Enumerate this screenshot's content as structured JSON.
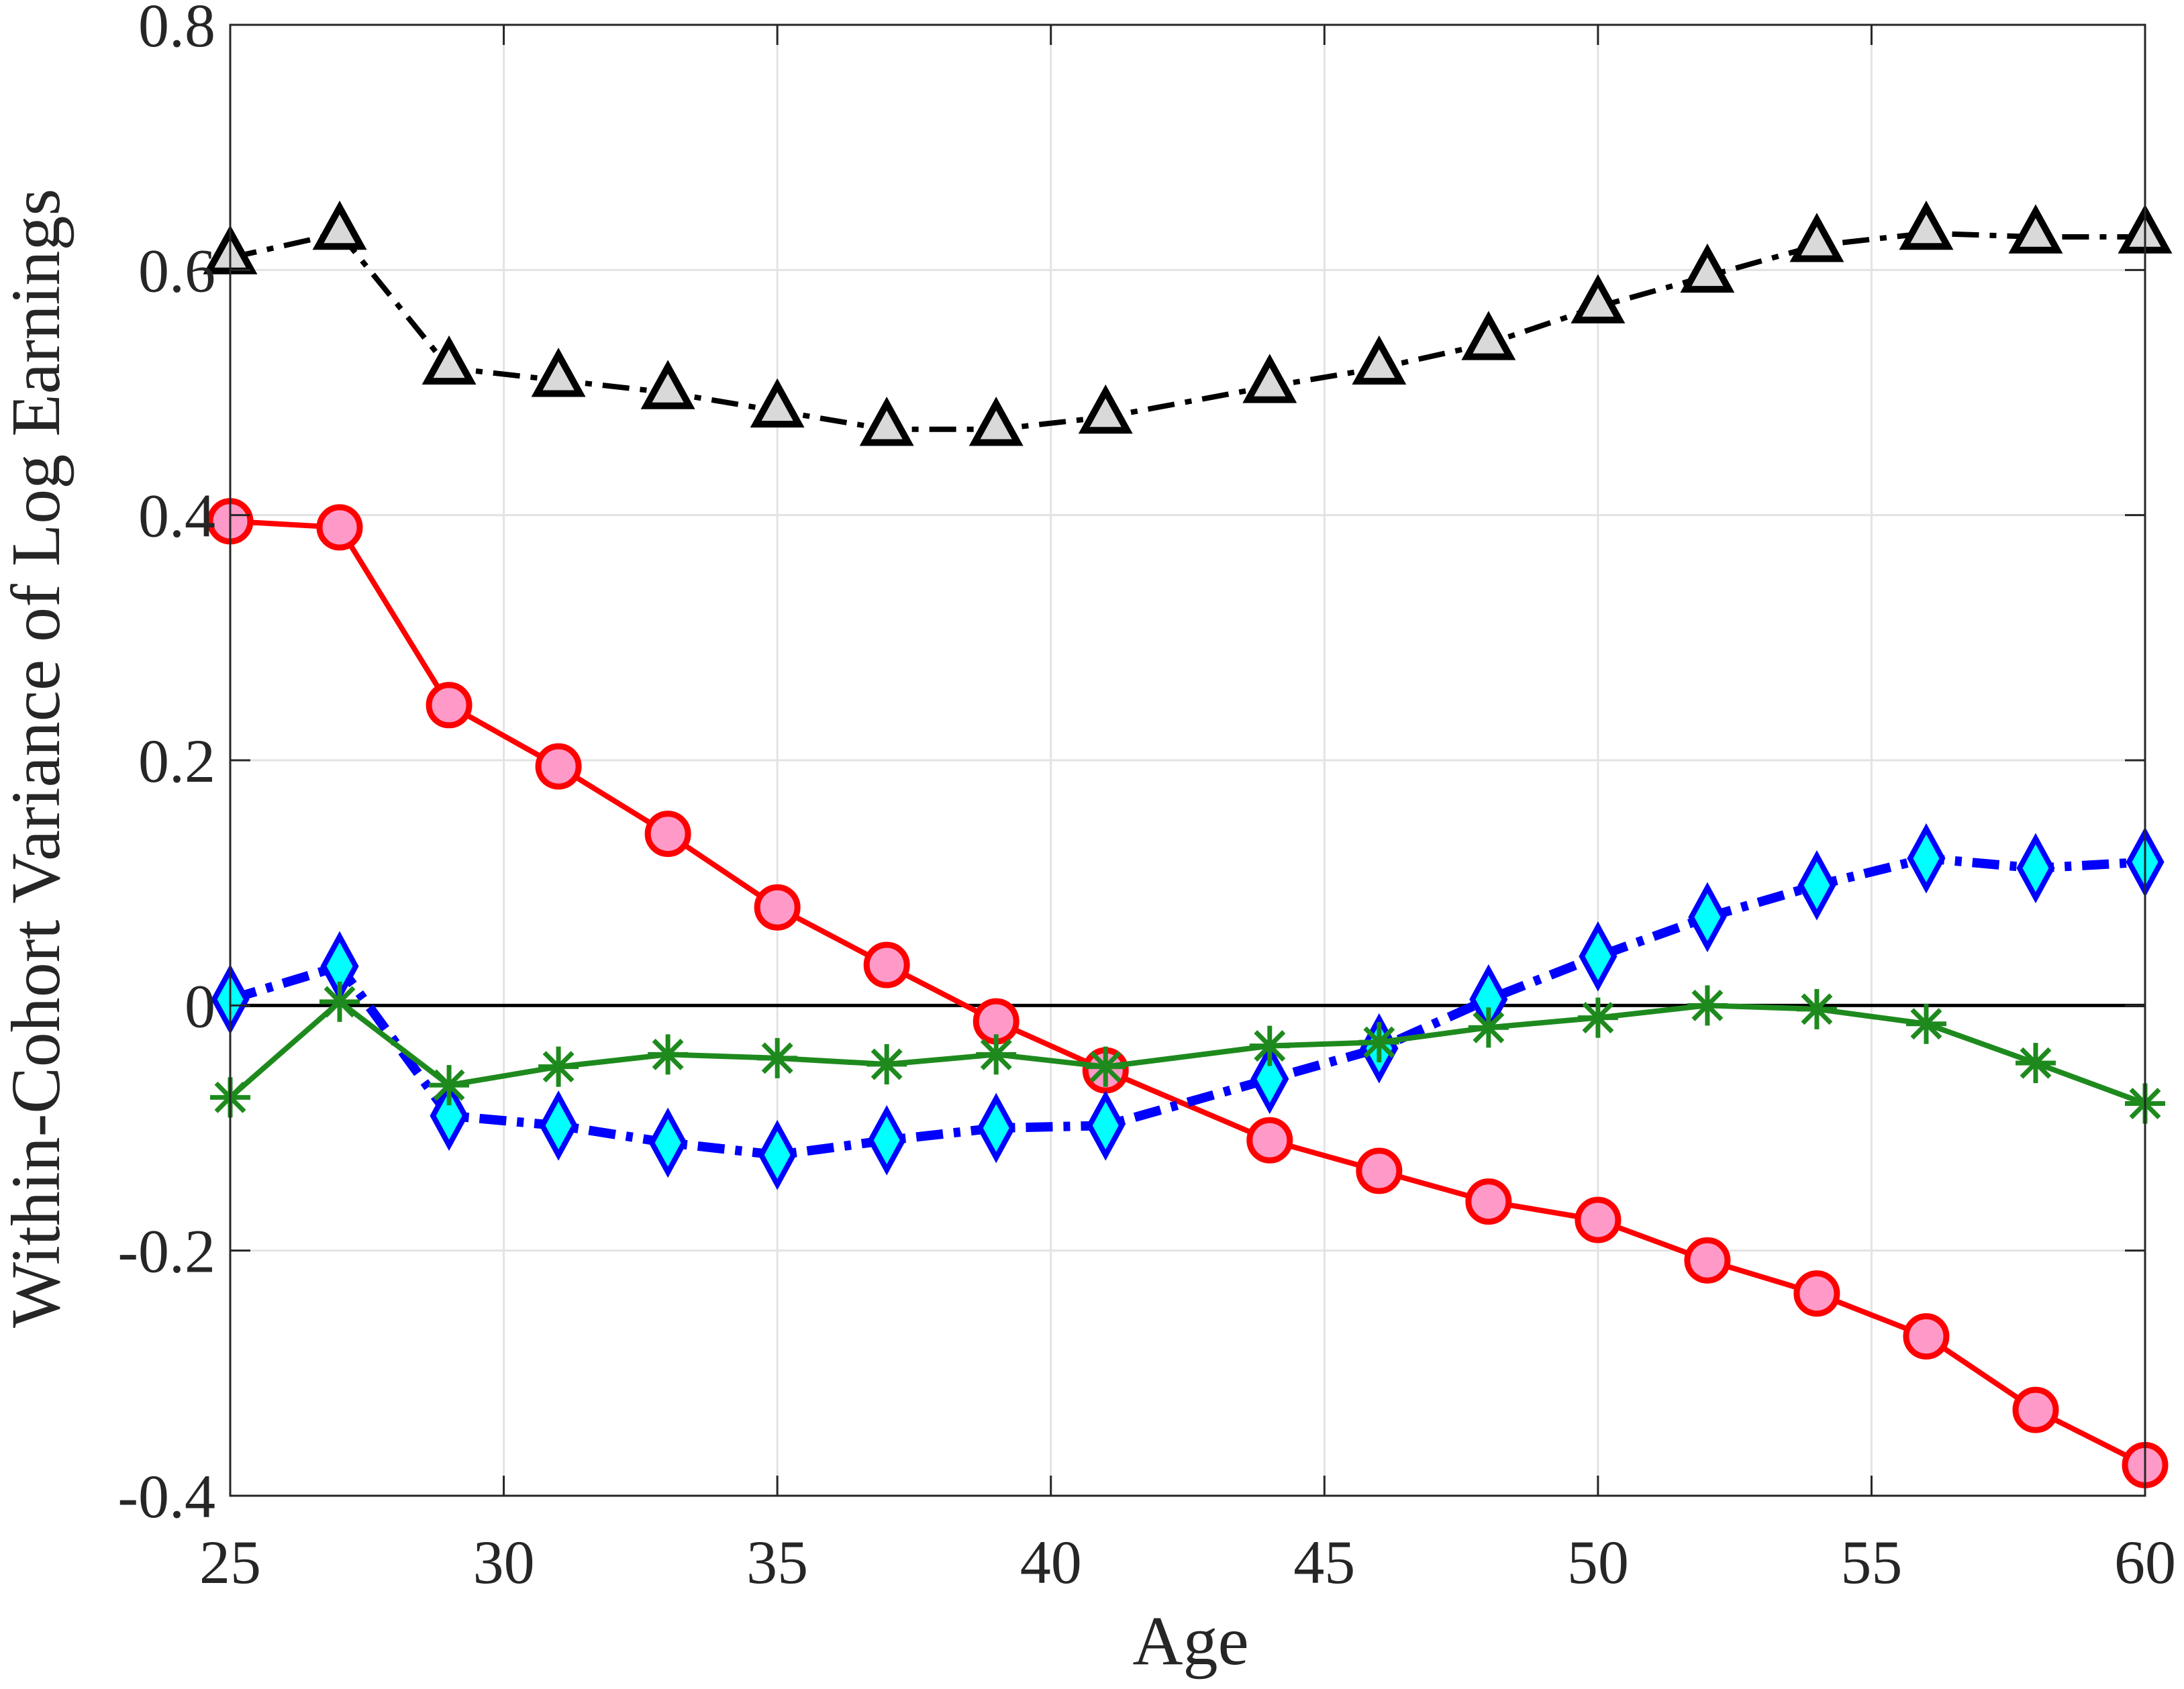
{
  "chart_data": {
    "type": "line",
    "title": "",
    "xlabel": "Age",
    "ylabel": "Within-Cohort Variance of Log Earnings",
    "xlim": [
      25,
      60
    ],
    "ylim": [
      -0.4,
      0.8
    ],
    "xticks": [
      25,
      30,
      35,
      40,
      45,
      50,
      55,
      60
    ],
    "yticks": [
      -0.4,
      -0.2,
      0,
      0.2,
      0.4,
      0.6,
      0.8
    ],
    "ytick_labels": [
      "-0.4",
      "-0.2",
      "0",
      "0.2",
      "0.4",
      "0.6",
      "0.8"
    ],
    "grid": true,
    "legend": null,
    "reference_line": {
      "y": 0,
      "color": "#000000"
    },
    "x": [
      25,
      27,
      29,
      31,
      33,
      35,
      37,
      39,
      41,
      44,
      46,
      48,
      50,
      52,
      54,
      56,
      58,
      60
    ],
    "series": [
      {
        "name": "gray-triangles",
        "marker": "triangle",
        "line_style": "dashdot",
        "line_color": "#000000",
        "marker_fill": "#d9d9d9",
        "marker_edge": "#000000",
        "values": [
          0.61,
          0.63,
          0.52,
          0.51,
          0.5,
          0.485,
          0.47,
          0.47,
          0.48,
          0.505,
          0.52,
          0.54,
          0.57,
          0.595,
          0.62,
          0.63,
          0.627,
          0.627
        ]
      },
      {
        "name": "red-circles",
        "marker": "circle",
        "line_style": "solid",
        "line_color": "#ff0000",
        "marker_fill": "#ff99c8",
        "marker_edge": "#ff0000",
        "values": [
          0.395,
          0.39,
          0.245,
          0.195,
          0.14,
          0.08,
          0.033,
          -0.013,
          -0.053,
          -0.11,
          -0.135,
          -0.16,
          -0.175,
          -0.208,
          -0.235,
          -0.27,
          -0.33,
          -0.375
        ]
      },
      {
        "name": "blue-diamonds",
        "marker": "diamond",
        "line_style": "dashdot",
        "line_color": "#0000ff",
        "marker_fill": "#00ffff",
        "marker_edge": "#0000ff",
        "values": [
          0.005,
          0.032,
          -0.09,
          -0.098,
          -0.112,
          -0.122,
          -0.11,
          -0.1,
          -0.098,
          -0.06,
          -0.035,
          0.005,
          0.04,
          0.072,
          0.098,
          0.12,
          0.112,
          0.117
        ]
      },
      {
        "name": "green-stars",
        "marker": "asterisk",
        "line_style": "solid",
        "line_color": "#1e8a1e",
        "marker_fill": "none",
        "marker_edge": "#1e8a1e",
        "values": [
          -0.075,
          0.003,
          -0.065,
          -0.05,
          -0.04,
          -0.043,
          -0.048,
          -0.04,
          -0.05,
          -0.033,
          -0.03,
          -0.018,
          -0.01,
          0.0,
          -0.003,
          -0.015,
          -0.047,
          -0.08
        ]
      }
    ]
  }
}
